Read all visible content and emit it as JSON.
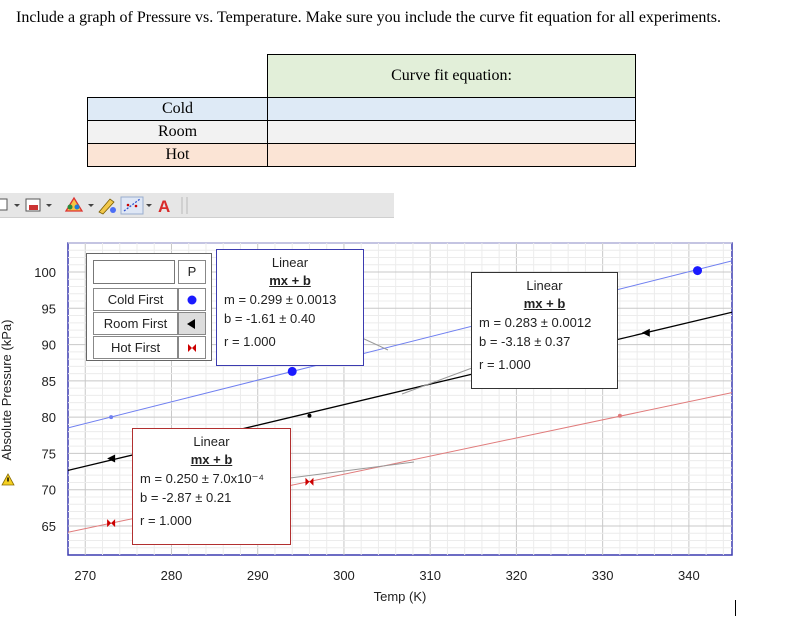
{
  "instructions": "Include a graph of Pressure vs. Temperature.  Make sure you include the curve fit equation for all experiments.",
  "table": {
    "header": "Curve fit equation:",
    "rows": [
      {
        "label": "Cold",
        "value": ""
      },
      {
        "label": "Room",
        "value": ""
      },
      {
        "label": "Hot",
        "value": ""
      }
    ]
  },
  "toolbar": {
    "icons": [
      "draw-icon",
      "insert-icon",
      "color-palette-icon",
      "pencil-icon",
      "curve-fit-icon",
      "text-icon"
    ],
    "text_icon_glyph": "A"
  },
  "legend": {
    "header_col": "P",
    "entries": [
      {
        "label": "Cold First",
        "color": "#1a1aff",
        "icon": "circle-icon"
      },
      {
        "label": "Room First",
        "color": "#000000",
        "icon": "triangle-left-icon"
      },
      {
        "label": "Hot First",
        "color": "#cc0000",
        "icon": "bowtie-icon"
      }
    ]
  },
  "fit_boxes": {
    "cold": {
      "title": "Linear",
      "eq": "mx + b",
      "m": "m = 0.299 ± 0.0013",
      "b": "b  = -1.61  ± 0.40",
      "r": "r = 1.000"
    },
    "room": {
      "title": "Linear",
      "eq": "mx + b",
      "m": "m = 0.283 ± 0.0012",
      "b": "b  = -3.18  ± 0.37",
      "r": "r = 1.000"
    },
    "hot": {
      "title": "Linear",
      "eq": "mx + b",
      "m": "m = 0.250 ± 7.0x10⁻⁴",
      "b": "b  = -2.87  ± 0.21",
      "r": "r = 1.000"
    }
  },
  "chart_data": {
    "type": "line",
    "xlabel": "Temp (K)",
    "ylabel": "Absolute Pressure (kPa)",
    "xlim": [
      268,
      345
    ],
    "ylim": [
      61,
      104
    ],
    "x_ticks": [
      270,
      280,
      290,
      300,
      310,
      320,
      330,
      340
    ],
    "y_ticks": [
      65,
      70,
      75,
      80,
      85,
      90,
      95,
      100
    ],
    "grid": true,
    "series": [
      {
        "name": "Cold First",
        "color": "#6f7ff0",
        "marker_color": "#1a1aff",
        "slope": 0.299,
        "intercept": -1.61,
        "points": [
          [
            273,
            80.0
          ],
          [
            294,
            86.3
          ],
          [
            341,
            100.2
          ]
        ]
      },
      {
        "name": "Room First",
        "color": "#000000",
        "marker_color": "#000000",
        "slope": 0.283,
        "intercept": -3.18,
        "points": [
          [
            273,
            74.3
          ],
          [
            296,
            80.2
          ]
        ]
      },
      {
        "name": "Hot First",
        "color": "#e07b7b",
        "marker_color": "#cc0000",
        "slope": 0.25,
        "intercept": -2.87,
        "points": [
          [
            273,
            65.4
          ],
          [
            296,
            71.1
          ],
          [
            332,
            80.2
          ]
        ]
      }
    ]
  }
}
